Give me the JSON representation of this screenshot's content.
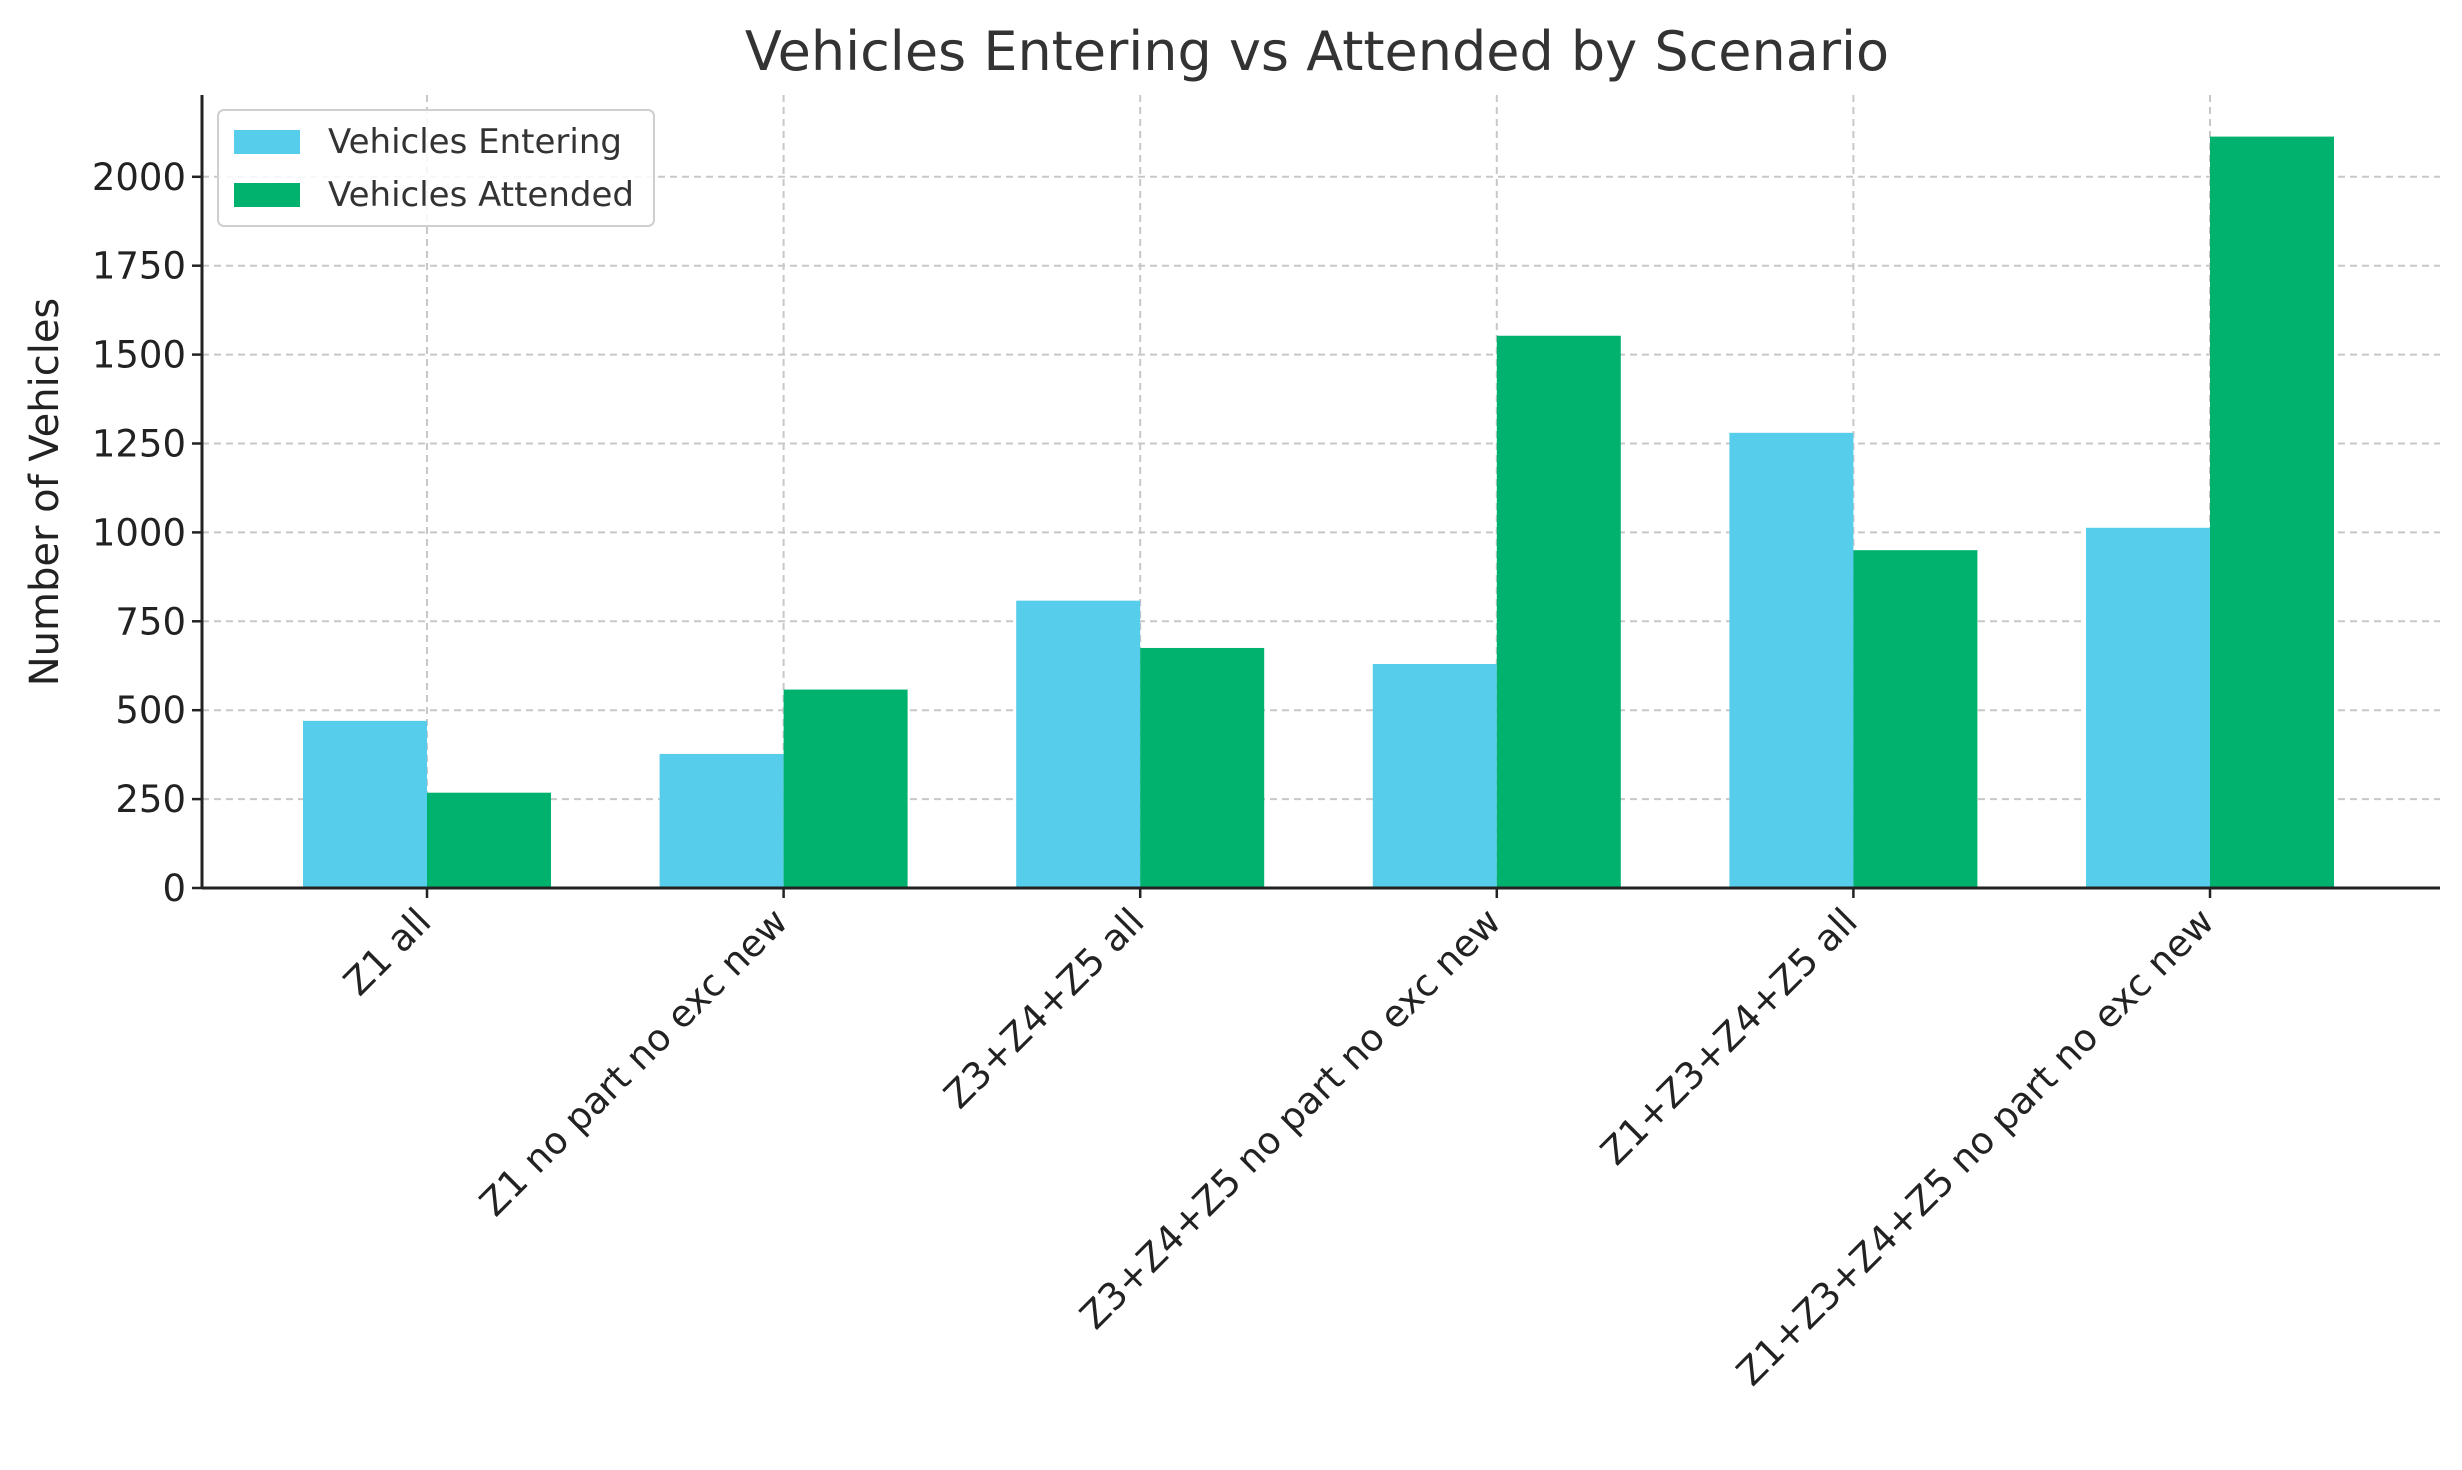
{
  "chart_data": {
    "type": "bar",
    "title": "Vehicles Entering vs Attended by Scenario",
    "xlabel": "",
    "ylabel": "Number of Vehicles",
    "ylim": [
      0,
      2230
    ],
    "yticks": [
      0,
      250,
      500,
      750,
      1000,
      1250,
      1500,
      1750,
      2000
    ],
    "grid": true,
    "legend_position": "top-left",
    "categories": [
      "Z1 all",
      "Z1 no part no exc new",
      "Z3+Z4+Z5 all",
      "Z3+Z4+Z5 no part no exc new",
      "Z1+Z3+Z4+Z5 all",
      "Z1+Z3+Z4+Z5 no part no exc new"
    ],
    "series": [
      {
        "name": "Vehicles Entering",
        "color": "#57cdec",
        "values": [
          470,
          377,
          808,
          630,
          1280,
          1013
        ]
      },
      {
        "name": "Vehicles Attended",
        "color": "#00b26e",
        "values": [
          268,
          558,
          675,
          1553,
          950,
          2113
        ]
      }
    ]
  }
}
